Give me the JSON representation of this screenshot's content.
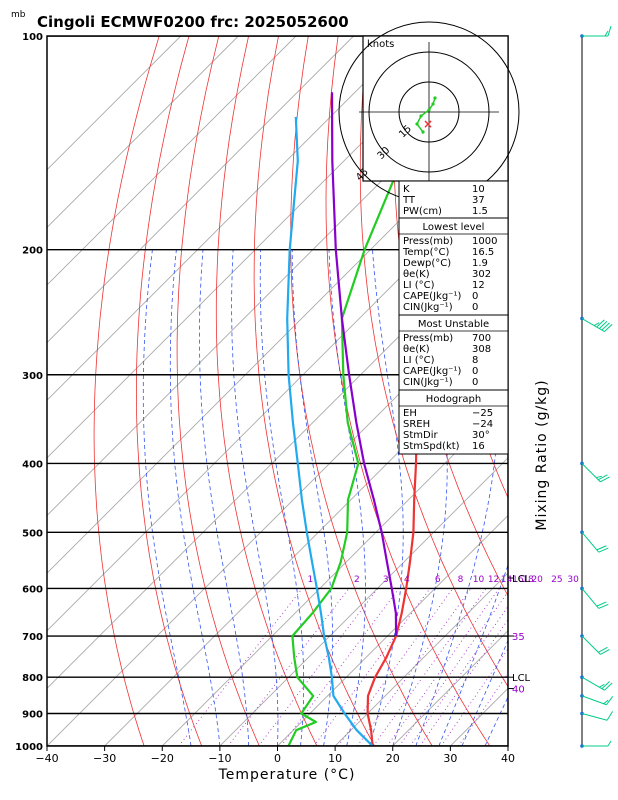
{
  "chart_data": {
    "type": "line",
    "subtype": "skew-T log-P sounding",
    "title": "Cingoli ECMWF0200  frc: 2025052600",
    "xlabel": "Temperature (°C)",
    "ylabel_right": "Mixing Ratio (g/kg)",
    "y_unit": "mb",
    "xlim": [
      -40,
      40
    ],
    "ylim": [
      1000,
      100
    ],
    "x_ticks": [
      "−40",
      "−30",
      "−20",
      "−10",
      "0",
      "10",
      "20",
      "30",
      "40"
    ],
    "pressure_ticks": [
      {
        "p": 100,
        "label": "100"
      },
      {
        "p": 200,
        "label": "200"
      },
      {
        "p": 300,
        "label": "300"
      },
      {
        "p": 400,
        "label": "400"
      },
      {
        "p": 500,
        "label": "500"
      },
      {
        "p": 600,
        "label": "600"
      },
      {
        "p": 700,
        "label": "700"
      },
      {
        "p": 800,
        "label": "800"
      },
      {
        "p": 900,
        "label": "900"
      },
      {
        "p": 1000,
        "label": "1000"
      }
    ],
    "mixing_ratio_labels": [
      "1",
      "2",
      "3",
      "4",
      "6",
      "8",
      "10",
      "12",
      "14",
      "16",
      "18",
      "20",
      "25",
      "30"
    ],
    "mixing_ratio_label_p": 580,
    "series": [
      {
        "name": "Temperature",
        "color": "#ee3333",
        "points": [
          [
            1000,
            16.5
          ],
          [
            950,
            13.5
          ],
          [
            900,
            10.0
          ],
          [
            850,
            7.0
          ],
          [
            800,
            5.0
          ],
          [
            750,
            3.5
          ],
          [
            700,
            1.5
          ],
          [
            650,
            -1.5
          ],
          [
            600,
            -5.0
          ],
          [
            550,
            -9.0
          ],
          [
            500,
            -13.5
          ],
          [
            450,
            -19.0
          ],
          [
            400,
            -25.0
          ],
          [
            350,
            -32.0
          ],
          [
            300,
            -40.0
          ],
          [
            250,
            -49.5
          ],
          [
            230,
            -53.0
          ],
          [
            200,
            -53.5
          ],
          [
            150,
            -56.0
          ],
          [
            100,
            -58.5
          ]
        ]
      },
      {
        "name": "Dewpoint",
        "color": "#22cc22",
        "points": [
          [
            1000,
            1.9
          ],
          [
            950,
            0.5
          ],
          [
            925,
            2.5
          ],
          [
            900,
            -1.5
          ],
          [
            850,
            -2.5
          ],
          [
            800,
            -8.5
          ],
          [
            750,
            -12.5
          ],
          [
            700,
            -16.5
          ],
          [
            650,
            -17.0
          ],
          [
            600,
            -18.0
          ],
          [
            550,
            -21.0
          ],
          [
            500,
            -25.0
          ],
          [
            450,
            -30.5
          ],
          [
            400,
            -35.0
          ],
          [
            350,
            -44.0
          ],
          [
            300,
            -53.0
          ],
          [
            250,
            -63.0
          ],
          [
            200,
            -71.0
          ],
          [
            150,
            -80.0
          ],
          [
            100,
            -91.5
          ]
        ]
      },
      {
        "name": "Parcel",
        "color": "#8800cc",
        "points": [
          [
            700,
            1.5
          ],
          [
            650,
            -2.5
          ],
          [
            600,
            -7.5
          ],
          [
            550,
            -13.0
          ],
          [
            500,
            -19.0
          ],
          [
            450,
            -26.0
          ],
          [
            400,
            -34.0
          ],
          [
            350,
            -42.5
          ],
          [
            300,
            -52.0
          ],
          [
            250,
            -63.0
          ],
          [
            200,
            -76.0
          ],
          [
            150,
            -92.0
          ],
          [
            120,
            -104.0
          ]
        ]
      },
      {
        "name": "Parcel-surface",
        "color": "#22aaee",
        "points": [
          [
            1000,
            16.5
          ],
          [
            950,
            11.0
          ],
          [
            900,
            6.0
          ],
          [
            850,
            1.0
          ],
          [
            800,
            -2.5
          ],
          [
            750,
            -6.5
          ],
          [
            700,
            -11.0
          ],
          [
            650,
            -15.5
          ],
          [
            600,
            -20.5
          ],
          [
            550,
            -26.0
          ],
          [
            500,
            -32.0
          ],
          [
            450,
            -38.5
          ],
          [
            400,
            -45.5
          ],
          [
            350,
            -53.5
          ],
          [
            300,
            -62.5
          ],
          [
            250,
            -72.5
          ],
          [
            200,
            -84.0
          ],
          [
            150,
            -98.0
          ],
          [
            130,
            -106.0
          ]
        ]
      }
    ],
    "side_marks": [
      {
        "p": 580,
        "label": "LCL",
        "color": "#000000"
      },
      {
        "p": 700,
        "label": "35",
        "color": "#9900cc"
      },
      {
        "p": 800,
        "label": "LCL",
        "color": "#000000"
      },
      {
        "p": 830,
        "label": "40",
        "color": "#9900cc"
      }
    ],
    "wind_barbs": [
      {
        "p": 100,
        "dir": 270,
        "kt": 15
      },
      {
        "p": 250,
        "dir": 300,
        "kt": 45
      },
      {
        "p": 400,
        "dir": 315,
        "kt": 25
      },
      {
        "p": 500,
        "dir": 320,
        "kt": 20
      },
      {
        "p": 600,
        "dir": 320,
        "kt": 20
      },
      {
        "p": 700,
        "dir": 315,
        "kt": 20
      },
      {
        "p": 800,
        "dir": 300,
        "kt": 25
      },
      {
        "p": 850,
        "dir": 290,
        "kt": 15
      },
      {
        "p": 900,
        "dir": 285,
        "kt": 10
      },
      {
        "p": 1000,
        "dir": 270,
        "kt": 5
      }
    ],
    "hodograph": {
      "label": "knots",
      "ring_labels": [
        "15",
        "30",
        "45"
      ],
      "points": [
        [
          3,
          7
        ],
        [
          2,
          4
        ],
        [
          0,
          1
        ],
        [
          -4,
          -2
        ],
        [
          -6,
          -6
        ],
        [
          -3,
          -10
        ]
      ]
    }
  },
  "indices": {
    "top": [
      {
        "name": "K",
        "value": "10"
      },
      {
        "name": "TT",
        "value": "37"
      },
      {
        "name": "PW(cm)",
        "value": "1.5"
      }
    ],
    "lowest_level": {
      "title": "Lowest level",
      "rows": [
        {
          "name": "Press(mb)",
          "value": "1000"
        },
        {
          "name": "Temp(°C)",
          "value": "16.5"
        },
        {
          "name": "Dewp(°C)",
          "value": "1.9"
        },
        {
          "name": "θe(K)",
          "value": "302"
        },
        {
          "name": "LI (°C)",
          "value": "12"
        },
        {
          "name": "CAPE(Jkg⁻¹)",
          "value": "0"
        },
        {
          "name": "CIN(Jkg⁻¹)",
          "value": "0"
        }
      ]
    },
    "most_unstable": {
      "title": "Most Unstable",
      "rows": [
        {
          "name": "Press(mb)",
          "value": "700"
        },
        {
          "name": "θe(K)",
          "value": "308"
        },
        {
          "name": "LI (°C)",
          "value": "8"
        },
        {
          "name": "CAPE(Jkg⁻¹)",
          "value": "0"
        },
        {
          "name": "CIN(Jkg⁻¹)",
          "value": "0"
        }
      ]
    },
    "hodograph_box": {
      "title": "Hodograph",
      "rows": [
        {
          "name": "EH",
          "value": "−25"
        },
        {
          "name": "SREH",
          "value": "−24"
        },
        {
          "name": "StmDir",
          "value": "30°"
        },
        {
          "name": "StmSpd(kt)",
          "value": "16"
        }
      ]
    }
  }
}
